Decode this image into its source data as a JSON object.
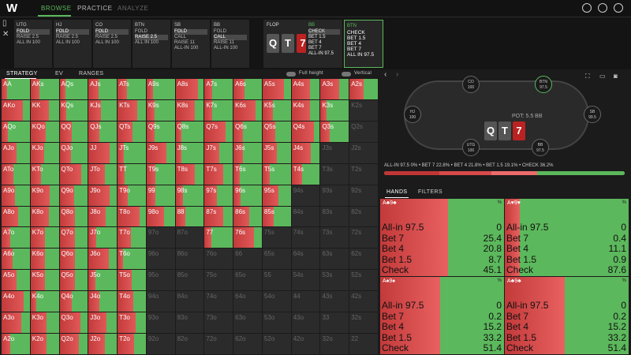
{
  "topbar": {
    "logo": "W",
    "tabs": [
      {
        "label": "BROWSE",
        "color": "#5cb85c"
      },
      {
        "label": "PRACTICE",
        "color": "#bbbbbb"
      },
      {
        "label": "ANALYZE",
        "color": "#666666"
      }
    ]
  },
  "nodes": [
    {
      "label": "UTG",
      "opts": [
        "FOLD",
        "RAISE 2.5",
        "ALL IN 100"
      ],
      "sel": 0
    },
    {
      "label": "HJ",
      "opts": [
        "FOLD",
        "RAISE 2.5",
        "ALL IN 100"
      ],
      "sel": 0
    },
    {
      "label": "CO",
      "opts": [
        "FOLD",
        "RAISE 2.5",
        "ALL IN 100"
      ],
      "sel": 0
    },
    {
      "label": "BTN",
      "opts": [
        "FOLD",
        "RAISE 2.5",
        "ALL IN 100"
      ],
      "sel": 1
    },
    {
      "label": "SB",
      "opts": [
        "FOLD",
        "CALL",
        "RAISE 11",
        "ALL-IN 100"
      ],
      "sel": 0
    },
    {
      "label": "BB",
      "opts": [
        "FOLD",
        "CALL",
        "RAISE 11",
        "ALL-IN 100"
      ],
      "sel": 1
    }
  ],
  "flop": {
    "label": "FLOP",
    "cards": [
      "Q",
      "T",
      "7"
    ]
  },
  "bbnode": {
    "label": "BB",
    "opts": [
      "CHECK",
      "BET 1.5",
      "BET 4",
      "BET 7",
      "ALL-IN 97.5"
    ]
  },
  "btnnode": {
    "label": "BTN",
    "opts": [
      "CHECK",
      "BET 1.5",
      "BET 4",
      "BET 7",
      "ALL IN 97.5"
    ]
  },
  "strat": {
    "tabs": [
      "STRATEGY",
      "EV",
      "RANGES"
    ],
    "full": "Full height",
    "vertical": "Vertical"
  },
  "table": {
    "pot": "POT: 5.5 BB",
    "seats": [
      {
        "name": "CO",
        "stack": "100"
      },
      {
        "name": "BTN",
        "stack": "97.5"
      },
      {
        "name": "HJ",
        "stack": "100"
      },
      {
        "name": "SB",
        "stack": "99.5"
      },
      {
        "name": "UTG",
        "stack": "100"
      },
      {
        "name": "BB",
        "stack": "97.5"
      }
    ],
    "cards": [
      "Q",
      "T",
      "7"
    ]
  },
  "frequencies": {
    "text": "ALL-IN 97.5 0% • BET 7 22.8% • BET 4 21.8% • BET 1.5 19.1% • CHECK 36.2%",
    "segments": [
      {
        "value": 0,
        "color": "#7a1010"
      },
      {
        "value": 22.8,
        "color": "#c03636"
      },
      {
        "value": 21.8,
        "color": "#d84a4a"
      },
      {
        "value": 19.1,
        "color": "#ec6b6b"
      },
      {
        "value": 36.2,
        "color": "#5cb85c"
      }
    ]
  },
  "handtabs": [
    "HANDS",
    "FILTERS"
  ],
  "hands": [
    {
      "name": "A♣9♣",
      "rows": [
        [
          "All-in 97.5",
          "0"
        ],
        [
          "Bet 7",
          "25.4"
        ],
        [
          "Bet 4",
          "20.8"
        ],
        [
          "Bet 1.5",
          "8.7"
        ],
        [
          "Check",
          "45.1"
        ]
      ]
    },
    {
      "name": "A♥9♥",
      "rows": [
        [
          "All-in 97.5",
          "0"
        ],
        [
          "Bet 7",
          "0.4"
        ],
        [
          "Bet 4",
          "11.1"
        ],
        [
          "Bet 1.5",
          "0.9"
        ],
        [
          "Check",
          "87.6"
        ]
      ]
    },
    {
      "name": "A♠9♠",
      "rows": [
        [
          "All-in 97.5",
          "0"
        ],
        [
          "Bet 7",
          "0.2"
        ],
        [
          "Bet 4",
          "15.2"
        ],
        [
          "Bet 1.5",
          "33.2"
        ],
        [
          "Check",
          "51.4"
        ]
      ]
    },
    {
      "name": "A♣9♣",
      "rows": [
        [
          "All-in 97.5",
          "0"
        ],
        [
          "Bet 7",
          "0.2"
        ],
        [
          "Bet 4",
          "15.2"
        ],
        [
          "Bet 1.5",
          "33.2"
        ],
        [
          "Check",
          "51.4"
        ]
      ]
    }
  ],
  "pct_sign": "%",
  "ranks": [
    "A",
    "K",
    "Q",
    "J",
    "T",
    "9",
    "8",
    "7",
    "6",
    "5",
    "4",
    "3",
    "2"
  ],
  "active_rows": [
    13,
    13,
    13,
    13,
    13,
    8,
    8,
    8,
    8,
    7,
    5,
    3,
    1
  ]
}
